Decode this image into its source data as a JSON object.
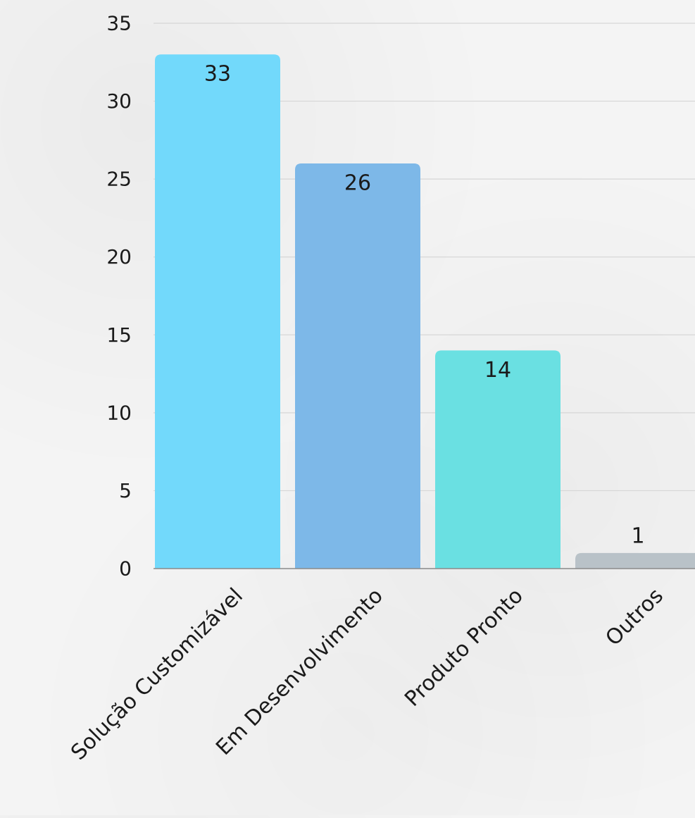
{
  "chart_data": {
    "type": "bar",
    "categories": [
      "Solução Customizável",
      "Em Desenvolvimento",
      "Produto Pronto",
      "Outros"
    ],
    "values": [
      33,
      26,
      14,
      1
    ],
    "data_labels": [
      "33",
      "26",
      "14",
      "1"
    ],
    "colors": [
      "#72d9fb",
      "#7db8e8",
      "#6ae0e2",
      "#b9c2c8"
    ],
    "title": "",
    "xlabel": "",
    "ylabel": "",
    "ylim": [
      0,
      35
    ],
    "yticks": [
      0,
      5,
      10,
      15,
      20,
      25,
      30,
      35
    ],
    "ytick_labels": [
      "0",
      "5",
      "10",
      "15",
      "20",
      "25",
      "30",
      "35"
    ],
    "grid": true,
    "legend": "none"
  }
}
